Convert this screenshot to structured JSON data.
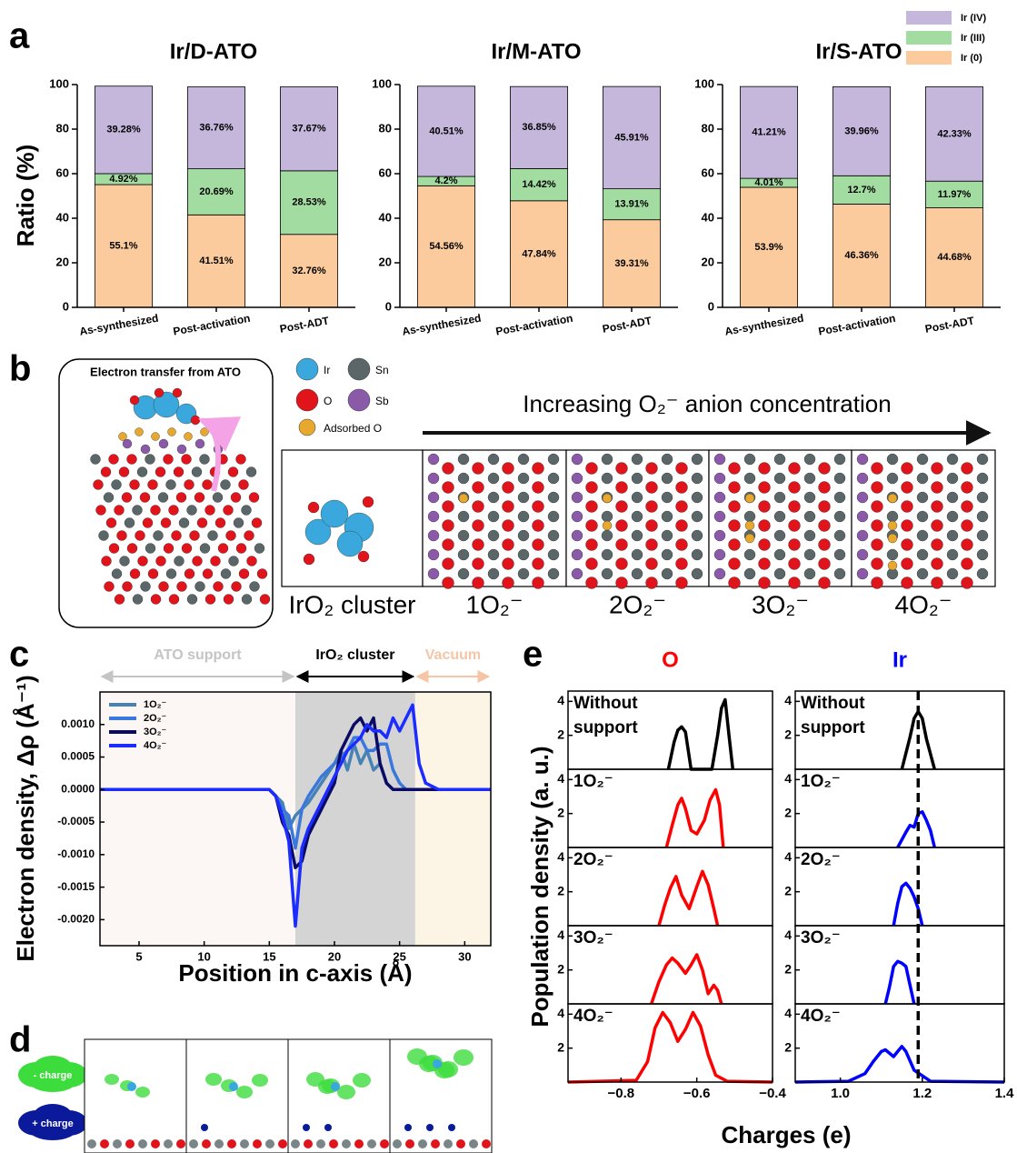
{
  "panel_labels": [
    "a",
    "b",
    "c",
    "d",
    "e"
  ],
  "chart_data": [
    {
      "type": "stacked-bar",
      "title": "Ir/D-ATO",
      "ylabel": "Ratio (%)",
      "categories": [
        "As-synthesized",
        "Post-activation",
        "Post-ADT"
      ],
      "ylim": [
        0,
        100
      ],
      "yticks": [
        0,
        20,
        40,
        60,
        80,
        100
      ],
      "series": [
        {
          "name": "Ir (IV)",
          "color": "#c5b7dc",
          "values": [
            39.28,
            36.76,
            37.67
          ],
          "value_labels": [
            "39.28%",
            "36.76%",
            "37.67%"
          ]
        },
        {
          "name": "Ir (III)",
          "color": "#a3dca0",
          "values": [
            4.92,
            20.69,
            28.53
          ],
          "value_labels": [
            "4.92%",
            "20.69%",
            "28.53%"
          ]
        },
        {
          "name": "Ir (0)",
          "color": "#fbcb9e",
          "values": [
            55.1,
            41.51,
            32.76
          ],
          "value_labels": [
            "55.1%",
            "41.51%",
            "32.76%"
          ]
        }
      ]
    },
    {
      "type": "stacked-bar",
      "title": "Ir/M-ATO",
      "categories": [
        "As-synthesized",
        "Post-activation",
        "Post-ADT"
      ],
      "ylim": [
        0,
        100
      ],
      "yticks": [
        0,
        20,
        40,
        60,
        80,
        100
      ],
      "series": [
        {
          "color": "#c5b7dc",
          "values": [
            40.51,
            36.85,
            45.91
          ],
          "value_labels": [
            "40.51%",
            "36.85%",
            "45.91%"
          ]
        },
        {
          "color": "#a3dca0",
          "values": [
            4.2,
            14.42,
            13.91
          ],
          "value_labels": [
            "4.2%",
            "14.42%",
            "13.91%"
          ]
        },
        {
          "color": "#fbcb9e",
          "values": [
            54.56,
            47.84,
            39.31
          ],
          "value_labels": [
            "54.56%",
            "47.84%",
            "39.31%"
          ]
        }
      ]
    },
    {
      "type": "stacked-bar",
      "title": "Ir/S-ATO",
      "categories": [
        "As-synthesized",
        "Post-activation",
        "Post-ADT"
      ],
      "ylim": [
        0,
        100
      ],
      "yticks": [
        0,
        20,
        40,
        60,
        80,
        100
      ],
      "series": [
        {
          "color": "#c5b7dc",
          "values": [
            41.21,
            39.96,
            42.33
          ],
          "value_labels": [
            "41.21%",
            "39.96%",
            "42.33%"
          ]
        },
        {
          "color": "#a3dca0",
          "values": [
            4.01,
            12.7,
            11.97
          ],
          "value_labels": [
            "4.01%",
            "12.7%",
            "11.97%"
          ]
        },
        {
          "color": "#fbcb9e",
          "values": [
            53.9,
            46.36,
            44.68
          ],
          "value_labels": [
            "53.9%",
            "46.36%",
            "44.68%"
          ]
        }
      ]
    },
    {
      "type": "line",
      "xlabel": "Position in c-axis (Å)",
      "ylabel": "Electron density, Δρ (Å⁻¹)",
      "xlim": [
        2,
        32
      ],
      "ylim": [
        -0.0024,
        0.0015
      ],
      "xticks": [
        5,
        10,
        15,
        20,
        25,
        30
      ],
      "yticks": [
        {
          "value": -0.002,
          "label": "-0.0020"
        },
        {
          "value": -0.0015,
          "label": "-0.0015"
        },
        {
          "value": -0.001,
          "label": "-0.0010"
        },
        {
          "value": -0.0005,
          "label": "-0.0005"
        },
        {
          "value": 0,
          "label": "0.0000"
        },
        {
          "value": 0.0005,
          "label": "0.0005"
        },
        {
          "value": 0.001,
          "label": "0.0010"
        }
      ],
      "regions": [
        {
          "label": "ATO support",
          "range": [
            2,
            17
          ],
          "fill": "#fcf6f5",
          "color": "#c4c4c4"
        },
        {
          "label": "IrO₂ cluster",
          "range": [
            17,
            26.2
          ],
          "fill": "#d4d4d4",
          "color": "#000000"
        },
        {
          "label": "Vacuum",
          "range": [
            26.2,
            32
          ],
          "fill": "#fcf4e4",
          "color": "#f6c5a6"
        }
      ],
      "x": [
        2,
        4,
        6,
        8,
        10,
        12,
        14,
        15,
        15.5,
        16,
        16.5,
        17,
        17.5,
        18,
        19,
        20,
        20.5,
        21,
        21.5,
        22,
        22.5,
        23,
        23.5,
        24,
        24.5,
        25,
        25.5,
        26,
        26.5,
        27,
        28,
        30,
        32
      ],
      "series": [
        {
          "name": "1O₂⁻",
          "color": "#4682b4",
          "values": [
            0,
            0,
            0,
            0,
            0,
            0,
            0,
            0,
            -0.0001,
            -0.0002,
            -0.0006,
            -0.0004,
            -0.0003,
            -0.0002,
            0.0001,
            0.0004,
            0.0006,
            0.0003,
            0.0007,
            0.0004,
            0.0006,
            0.0003,
            0.0004,
            0.0001,
            0,
            0,
            0,
            0,
            0,
            0,
            0,
            0,
            0
          ]
        },
        {
          "name": "2O₂⁻",
          "color": "#3a78dc",
          "values": [
            0,
            0,
            0,
            0,
            0,
            0,
            0,
            0,
            -0.0001,
            -0.0003,
            -0.0004,
            -0.0009,
            -0.0003,
            -0.0001,
            0.0002,
            0.0004,
            0.0005,
            0.0006,
            0.0008,
            0.0008,
            0.0006,
            0.0006,
            0.0007,
            0.0007,
            0.0003,
            0.0001,
            0,
            0,
            0,
            0,
            0,
            0,
            0
          ]
        },
        {
          "name": "3O₂⁻",
          "color": "#0b0b66",
          "values": [
            0,
            0,
            0,
            0,
            0,
            0,
            0,
            0,
            -0.0001,
            -0.0005,
            -0.0007,
            -0.0012,
            -0.0011,
            -0.0007,
            -0.0003,
            0.0001,
            0.0006,
            0.0008,
            0.001,
            0.0011,
            0.0009,
            0.0011,
            0.0004,
            0.0001,
            0,
            0,
            0,
            0,
            0,
            0,
            0,
            0,
            0
          ]
        },
        {
          "name": "4O₂⁻",
          "color": "#1a2cff",
          "values": [
            0,
            0,
            0,
            0,
            0,
            0,
            0,
            0,
            -0.0001,
            -0.0004,
            -0.0008,
            -0.0021,
            -0.0009,
            -0.0006,
            -0.0002,
            0.0002,
            0.0004,
            0.0006,
            0.0007,
            0.0008,
            0.001,
            0.0009,
            0.0009,
            0.0008,
            0.0011,
            0.0009,
            0.0011,
            0.0013,
            0.0004,
            0.0001,
            0,
            0,
            0
          ]
        }
      ]
    },
    {
      "type": "density-column",
      "title": "O",
      "title_color": "#ff0000",
      "ylabel": "Population density (a. u.)",
      "xlabel": "Charges (e)",
      "xlim": [
        -0.94,
        -0.4
      ],
      "ylim": [
        0,
        4.5
      ],
      "yticks": [
        2,
        4
      ],
      "xticks": [
        {
          "value": -0.8,
          "label": "−0.8"
        },
        {
          "value": -0.6,
          "label": "−0.6"
        },
        {
          "value": -0.4,
          "label": "−0.4"
        }
      ],
      "rows": [
        {
          "label_lines": [
            "Without",
            "support"
          ],
          "color": "#000000",
          "x": [
            -0.675,
            -0.66,
            -0.65,
            -0.64,
            -0.63,
            -0.615,
            -0.56,
            -0.545,
            -0.535,
            -0.525,
            -0.515,
            -0.505
          ],
          "values": [
            0,
            1.6,
            2.3,
            2.5,
            2.2,
            0,
            0,
            2.0,
            3.6,
            4.1,
            2.0,
            0
          ]
        },
        {
          "label_lines": [
            "1O₂⁻"
          ],
          "color": "#ff0000",
          "x": [
            -0.68,
            -0.665,
            -0.65,
            -0.64,
            -0.63,
            -0.615,
            -0.6,
            -0.58,
            -0.565,
            -0.55,
            -0.54,
            -0.53
          ],
          "values": [
            0,
            1.3,
            2.5,
            2.9,
            2.3,
            1.0,
            0.8,
            1.6,
            2.8,
            3.4,
            2.5,
            0
          ]
        },
        {
          "label_lines": [
            "2O₂⁻"
          ],
          "color": "#ff0000",
          "x": [
            -0.7,
            -0.685,
            -0.67,
            -0.655,
            -0.64,
            -0.62,
            -0.6,
            -0.585,
            -0.57,
            -0.555,
            -0.545
          ],
          "values": [
            0,
            1.2,
            2.2,
            2.9,
            1.8,
            1.0,
            2.3,
            3.2,
            2.4,
            1.0,
            0
          ]
        },
        {
          "label_lines": [
            "3O₂⁻"
          ],
          "color": "#ff0000",
          "x": [
            -0.72,
            -0.7,
            -0.68,
            -0.665,
            -0.65,
            -0.63,
            -0.615,
            -0.6,
            -0.585,
            -0.57,
            -0.555,
            -0.545,
            -0.535
          ],
          "values": [
            0,
            1.3,
            2.3,
            2.7,
            2.4,
            1.8,
            2.3,
            2.9,
            2.0,
            0.6,
            1.1,
            0.8,
            0
          ]
        },
        {
          "label_lines": [
            "4O₂⁻"
          ],
          "color": "#ff0000",
          "x": [
            -0.94,
            -0.76,
            -0.73,
            -0.71,
            -0.69,
            -0.67,
            -0.65,
            -0.63,
            -0.61,
            -0.59,
            -0.57,
            -0.55,
            -0.52,
            -0.4
          ],
          "values": [
            0,
            0.1,
            1.2,
            3.2,
            4.1,
            3.5,
            2.4,
            3.1,
            4.1,
            3.3,
            1.6,
            0.4,
            0.05,
            0
          ]
        }
      ]
    },
    {
      "type": "density-column",
      "title": "Ir",
      "title_color": "#0000ff",
      "xlim": [
        0.89,
        1.4
      ],
      "ylim": [
        0,
        4.5
      ],
      "yticks": [
        2,
        4
      ],
      "vline": 1.19,
      "xticks": [
        {
          "value": 1,
          "label": "1.0"
        },
        1.2,
        1.4
      ],
      "rows": [
        {
          "label_lines": [
            "Without",
            "support"
          ],
          "color": "#000000",
          "x": [
            1.15,
            1.17,
            1.18,
            1.19,
            1.2,
            1.21,
            1.23
          ],
          "values": [
            0,
            1.9,
            3.0,
            3.4,
            3.0,
            1.8,
            0
          ]
        },
        {
          "label_lines": [
            "1O₂⁻"
          ],
          "color": "#0000ff",
          "x": [
            1.14,
            1.16,
            1.17,
            1.18,
            1.19,
            1.2,
            1.21,
            1.22,
            1.23
          ],
          "values": [
            0,
            0.9,
            1.3,
            1.2,
            2.0,
            2.1,
            1.6,
            1.0,
            0
          ]
        },
        {
          "label_lines": [
            "2O₂⁻"
          ],
          "color": "#0000ff",
          "x": [
            1.13,
            1.14,
            1.15,
            1.16,
            1.17,
            1.18,
            1.19,
            1.2
          ],
          "values": [
            0,
            1.3,
            2.3,
            2.5,
            2.2,
            1.7,
            1.0,
            0
          ]
        },
        {
          "label_lines": [
            "3O₂⁻"
          ],
          "color": "#0000ff",
          "x": [
            1.11,
            1.12,
            1.13,
            1.14,
            1.15,
            1.16,
            1.17,
            1.18
          ],
          "values": [
            0,
            1.0,
            2.2,
            2.5,
            2.4,
            2.2,
            1.1,
            0
          ]
        },
        {
          "label_lines": [
            "4O₂⁻"
          ],
          "color": "#0000ff",
          "x": [
            0.89,
            1.02,
            1.06,
            1.08,
            1.1,
            1.11,
            1.13,
            1.14,
            1.15,
            1.16,
            1.18,
            1.22,
            1.4
          ],
          "values": [
            0,
            0.05,
            0.5,
            1.2,
            1.8,
            1.9,
            1.5,
            1.8,
            2.1,
            1.8,
            0.7,
            0.05,
            0
          ]
        }
      ]
    }
  ],
  "panel_b": {
    "inset_title": "Electron transfer from ATO",
    "atom_legend": [
      {
        "label": "Ir",
        "color": "#3aa8dc"
      },
      {
        "label": "Sn",
        "color": "#5b6668"
      },
      {
        "label": "O",
        "color": "#e0141a"
      },
      {
        "label": "Sb",
        "color": "#8a5aa8"
      },
      {
        "label": "Adsorbed O",
        "color": "#e8a82e"
      }
    ],
    "arrow_text": "Increasing O₂⁻ anion concentration",
    "structures": [
      "IrO₂ cluster",
      "1O₂⁻",
      "2O₂⁻",
      "3O₂⁻",
      "4O₂⁻"
    ]
  },
  "panel_d": {
    "legend": [
      {
        "label": "- charge",
        "color": "#3ddc3d"
      },
      {
        "label": "+ charge",
        "color": "#0a1a9a"
      }
    ]
  }
}
